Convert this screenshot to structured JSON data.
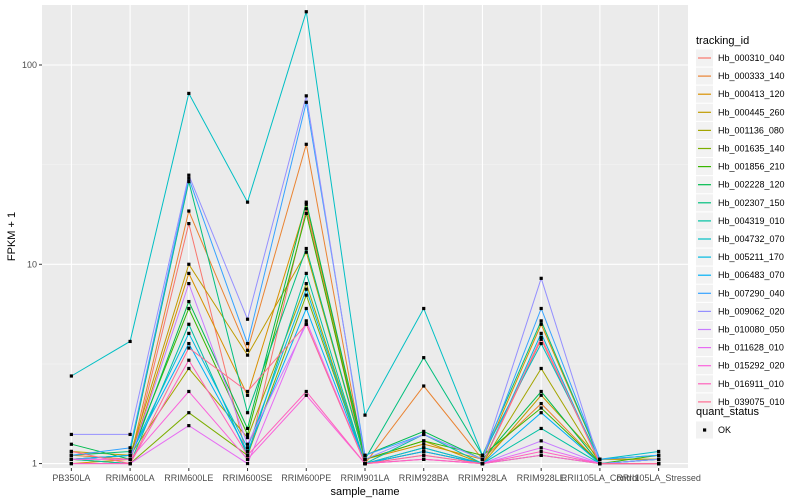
{
  "chart_data": {
    "type": "line",
    "xlabel": "sample_name",
    "ylabel": "FPKM + 1",
    "y_scale": "log10",
    "ylim": [
      0.95,
      200
    ],
    "y_ticks": [
      {
        "value": 1,
        "label": "1"
      },
      {
        "value": 10,
        "label": "10"
      },
      {
        "value": 100,
        "label": "100"
      }
    ],
    "categories": [
      "PB350LA",
      "RRIM600LA",
      "RRIM600LE",
      "RRIM600SE",
      "RRIM600PE",
      "RRIM901LA",
      "RRIM928BA",
      "RRIM928LA",
      "RRIM928LE",
      "RRII105LA_Control",
      "RRII105LA_Stressed"
    ],
    "grid": true,
    "legend_title": "tracking_id",
    "shape_legend": {
      "title": "quant_status",
      "items": [
        "OK"
      ]
    },
    "series": [
      {
        "name": "Hb_000310_040",
        "color": "#F8766D",
        "values": [
          1.05,
          1.0,
          16.0,
          1.05,
          19.0,
          1.0,
          1.15,
          1.0,
          4.2,
          1.0,
          1.0
        ]
      },
      {
        "name": "Hb_000333_140",
        "color": "#EA8331",
        "values": [
          1.1,
          1.05,
          18.5,
          3.7,
          40.0,
          1.0,
          2.45,
          1.05,
          2.0,
          1.0,
          1.0
        ]
      },
      {
        "name": "Hb_000413_120",
        "color": "#D89000",
        "values": [
          1.0,
          1.05,
          9.0,
          2.2,
          20.0,
          1.05,
          1.25,
          1.05,
          5.0,
          1.05,
          1.05
        ]
      },
      {
        "name": "Hb_000445_260",
        "color": "#C09B00",
        "values": [
          1.15,
          1.1,
          10.0,
          3.5,
          11.5,
          1.05,
          1.3,
          1.0,
          2.2,
          1.05,
          1.05
        ]
      },
      {
        "name": "Hb_001136_080",
        "color": "#A3A500",
        "values": [
          1.05,
          1.1,
          3.0,
          1.35,
          8.0,
          1.0,
          1.15,
          1.0,
          3.0,
          1.0,
          1.0
        ]
      },
      {
        "name": "Hb_001635_140",
        "color": "#7CAE00",
        "values": [
          1.05,
          1.0,
          1.8,
          1.1,
          7.0,
          1.0,
          1.2,
          1.0,
          1.1,
          1.0,
          1.0
        ]
      },
      {
        "name": "Hb_001856_210",
        "color": "#39B600",
        "values": [
          1.05,
          1.1,
          6.0,
          1.4,
          18.0,
          1.05,
          1.3,
          1.1,
          1.9,
          1.0,
          1.1
        ]
      },
      {
        "name": "Hb_002228_120",
        "color": "#00BB4E",
        "values": [
          1.25,
          1.05,
          6.5,
          1.5,
          20.5,
          1.1,
          1.45,
          1.05,
          2.3,
          1.0,
          1.05
        ]
      },
      {
        "name": "Hb_002307_150",
        "color": "#00BF7D",
        "values": [
          1.1,
          1.15,
          26.0,
          1.8,
          12.0,
          1.05,
          3.4,
          1.1,
          5.2,
          1.05,
          1.1
        ]
      },
      {
        "name": "Hb_004319_010",
        "color": "#00C1A3",
        "values": [
          1.05,
          1.0,
          5.0,
          1.1,
          9.0,
          1.0,
          1.4,
          1.0,
          1.5,
          1.0,
          1.0
        ]
      },
      {
        "name": "Hb_004732_070",
        "color": "#00BFC4",
        "values": [
          2.75,
          4.1,
          72.0,
          20.5,
          185.0,
          1.75,
          6.0,
          1.1,
          4.0,
          1.05,
          1.15
        ]
      },
      {
        "name": "Hb_005211_170",
        "color": "#00BAE0",
        "values": [
          1.05,
          1.1,
          4.5,
          1.2,
          7.5,
          1.0,
          1.2,
          1.0,
          4.5,
          1.0,
          1.05
        ]
      },
      {
        "name": "Hb_006483_070",
        "color": "#00B0F6",
        "values": [
          1.05,
          1.1,
          4.0,
          1.15,
          6.0,
          1.0,
          1.15,
          1.0,
          1.8,
          1.0,
          1.05
        ]
      },
      {
        "name": "Hb_007290_040",
        "color": "#35A2FF",
        "values": [
          1.1,
          1.2,
          27.0,
          4.0,
          65.0,
          1.1,
          1.4,
          1.05,
          6.0,
          1.05,
          1.1
        ]
      },
      {
        "name": "Hb_009062_020",
        "color": "#9590FF",
        "values": [
          1.4,
          1.4,
          28.0,
          5.3,
          70.0,
          1.05,
          1.4,
          1.05,
          8.5,
          1.0,
          1.05
        ]
      },
      {
        "name": "Hb_010080_050",
        "color": "#C77CFF",
        "values": [
          1.05,
          1.05,
          8.0,
          1.25,
          5.0,
          1.0,
          1.1,
          1.0,
          1.3,
          1.0,
          1.0
        ]
      },
      {
        "name": "Hb_011628_010",
        "color": "#E76BF3",
        "values": [
          1.0,
          1.0,
          1.55,
          1.0,
          5.2,
          1.0,
          1.05,
          1.0,
          1.2,
          1.0,
          1.0
        ]
      },
      {
        "name": "Hb_015292_020",
        "color": "#FA62DB",
        "values": [
          1.05,
          1.05,
          2.3,
          1.05,
          2.2,
          1.0,
          1.05,
          1.0,
          1.1,
          1.0,
          1.0
        ]
      },
      {
        "name": "Hb_016911_010",
        "color": "#FF62BC",
        "values": [
          1.0,
          1.0,
          3.3,
          1.1,
          2.3,
          1.0,
          1.05,
          1.0,
          1.15,
          1.0,
          1.0
        ]
      },
      {
        "name": "Hb_039075_010",
        "color": "#FF6C91",
        "values": [
          1.15,
          1.0,
          3.8,
          2.3,
          5.0,
          1.0,
          1.1,
          1.0,
          4.3,
          1.0,
          1.0
        ]
      }
    ]
  }
}
